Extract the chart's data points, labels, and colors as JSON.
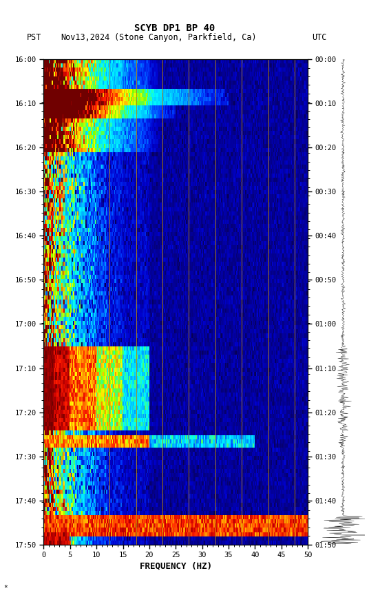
{
  "title_line1": "SCYB DP1 BP 40",
  "title_line2_pst": "PST",
  "title_line2_date": "Nov13,2024",
  "title_line2_loc": "(Stone Canyon, Parkfield, Ca)",
  "title_line2_utc": "UTC",
  "xlabel": "FREQUENCY (HZ)",
  "freq_min": 0,
  "freq_max": 50,
  "ytick_pst": [
    "16:00",
    "16:10",
    "16:20",
    "16:30",
    "16:40",
    "16:50",
    "17:00",
    "17:10",
    "17:20",
    "17:30",
    "17:40",
    "17:50"
  ],
  "ytick_utc": [
    "00:00",
    "00:10",
    "00:20",
    "00:30",
    "00:40",
    "00:50",
    "01:00",
    "01:10",
    "01:20",
    "01:30",
    "01:40",
    "01:50"
  ],
  "xticks": [
    0,
    5,
    10,
    15,
    20,
    25,
    30,
    35,
    40,
    45,
    50
  ],
  "vline_freqs": [
    12.5,
    17.5,
    22.5,
    27.5,
    32.5,
    37.5,
    42.5,
    47.5
  ],
  "fig_bg": "#ffffff",
  "figsize": [
    5.52,
    8.64
  ],
  "dpi": 100
}
